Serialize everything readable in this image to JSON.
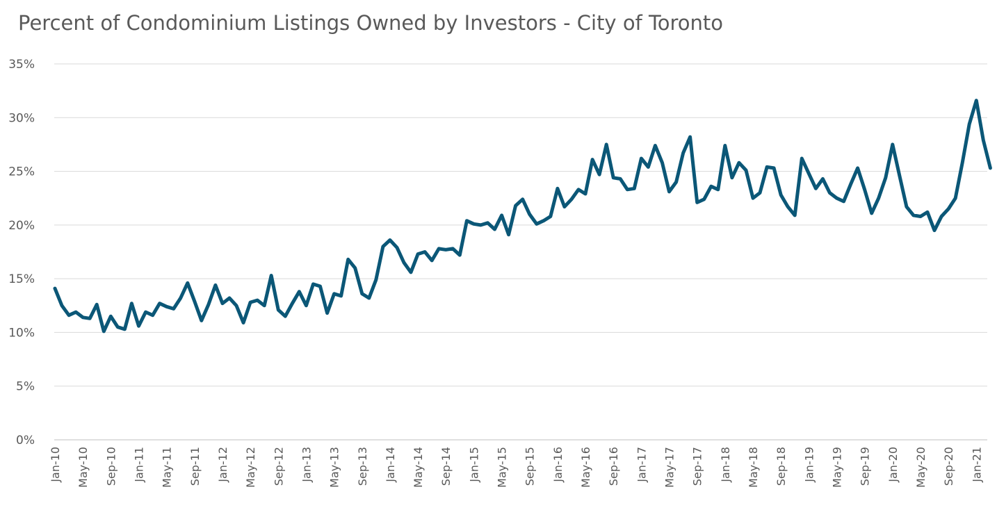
{
  "chart_data": {
    "type": "line",
    "title": "Percent of Condominium Listings Owned by Investors - City of Toronto",
    "xlabel": "",
    "ylabel": "",
    "ylim": [
      0,
      35
    ],
    "yticks": [
      "0%",
      "5%",
      "10%",
      "15%",
      "20%",
      "25%",
      "30%",
      "35%"
    ],
    "grid": true,
    "legend": "none",
    "x_start": "Jan-10",
    "x_tick_labels": [
      "Jan-10",
      "May-10",
      "Sep-10",
      "Jan-11",
      "May-11",
      "Sep-11",
      "Jan-12",
      "May-12",
      "Sep-12",
      "Jan-13",
      "May-13",
      "Sep-13",
      "Jan-14",
      "May-14",
      "Sep-14",
      "Jan-15",
      "May-15",
      "Sep-15",
      "Jan-16",
      "May-16",
      "Sep-16",
      "Jan-17",
      "May-17",
      "Sep-17",
      "Jan-18",
      "May-18",
      "Sep-18",
      "Jan-19",
      "May-19",
      "Sep-19",
      "Jan-20",
      "May-20",
      "Sep-20",
      "Jan-21"
    ],
    "series": [
      {
        "color": "#0b5777",
        "values": [
          14.1,
          12.5,
          11.6,
          11.9,
          11.4,
          11.3,
          12.6,
          10.1,
          11.5,
          10.5,
          10.3,
          12.7,
          10.6,
          11.9,
          11.6,
          12.7,
          12.4,
          12.2,
          13.2,
          14.6,
          12.9,
          11.1,
          12.6,
          14.4,
          12.7,
          13.2,
          12.5,
          10.9,
          12.8,
          13.0,
          12.5,
          15.3,
          12.1,
          11.5,
          12.7,
          13.8,
          12.5,
          14.5,
          14.3,
          11.8,
          13.6,
          13.4,
          16.8,
          16.0,
          13.6,
          13.2,
          14.9,
          18.0,
          18.6,
          17.9,
          16.5,
          15.6,
          17.3,
          17.5,
          16.7,
          17.8,
          17.7,
          17.8,
          17.2,
          20.4,
          20.1,
          20.0,
          20.2,
          19.6,
          20.9,
          19.1,
          21.8,
          22.4,
          21.0,
          20.1,
          20.4,
          20.8,
          23.4,
          21.7,
          22.4,
          23.3,
          22.9,
          26.1,
          24.7,
          27.5,
          24.4,
          24.3,
          23.3,
          23.4,
          26.2,
          25.4,
          27.4,
          25.8,
          23.1,
          24.0,
          26.7,
          28.2,
          22.1,
          22.4,
          23.6,
          23.3,
          27.4,
          24.4,
          25.8,
          25.1,
          22.5,
          23.0,
          25.4,
          25.3,
          22.8,
          21.7,
          20.9,
          26.2,
          24.8,
          23.4,
          24.3,
          23.0,
          22.5,
          22.2,
          23.8,
          25.3,
          23.3,
          21.1,
          22.5,
          24.4,
          27.5,
          24.6,
          21.7,
          20.9,
          20.8,
          21.2,
          19.5,
          20.8,
          21.5,
          22.5,
          25.8,
          29.4,
          31.6,
          27.9,
          25.3
        ]
      }
    ]
  }
}
